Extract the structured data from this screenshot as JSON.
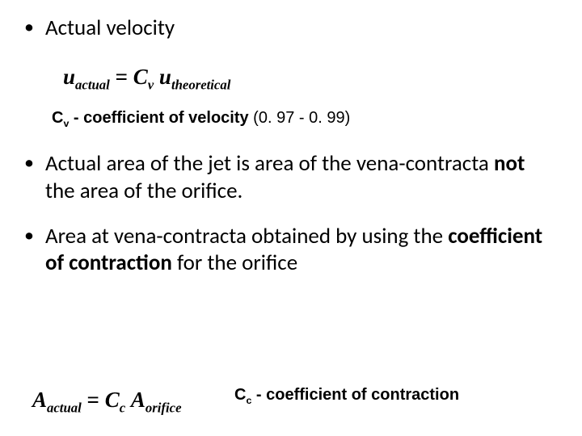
{
  "bullets": {
    "b1": "Actual velocity",
    "b2_part1": "Actual area of the jet is area of the vena-contracta ",
    "b2_bold": "not",
    "b2_part2": " the area of the orifice.",
    "b3_part1": "Area at vena-contracta obtained by using the ",
    "b3_bold": "coefficient of contraction",
    "b3_part2": " for the orifice"
  },
  "equation1": {
    "u": "u",
    "sub_actual": "actual",
    "equals": " = ",
    "C": "C",
    "sub_v": "v",
    "space": " ",
    "sub_theoretical": "theoretical"
  },
  "cv_line": {
    "C": "C",
    "sub_v": "v",
    "text_bold": " - coefficient of velocity",
    "range": "  (0. 97 - 0. 99)"
  },
  "equation2": {
    "A": "A",
    "sub_actual": "actual",
    "equals": " = ",
    "C": "C",
    "sub_c": "c",
    "space": " ",
    "sub_orifice": "orifice"
  },
  "cc_line": {
    "C": "C",
    "sub_c": "c",
    "text": " - coefficient of contraction"
  },
  "colors": {
    "background": "#ffffff",
    "text": "#000000"
  },
  "fonts": {
    "body": "Calibri",
    "equation": "Times New Roman",
    "labels": "Verdana"
  }
}
